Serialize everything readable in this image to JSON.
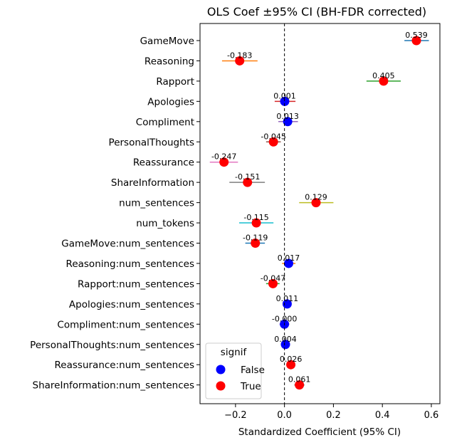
{
  "chart_data": {
    "type": "scatter",
    "title": "OLS Coef ±95% CI (BH-FDR corrected)",
    "xlabel": "Standardized Coefficient (95% CI)",
    "ylabel": "",
    "xlim": [
      -0.345,
      0.635
    ],
    "xticks": [
      -0.2,
      0.0,
      0.2,
      0.4,
      0.6
    ],
    "xtick_labels": [
      "−0.2",
      "0.0",
      "0.2",
      "0.4",
      "0.6"
    ],
    "reference_line": 0.0,
    "grid": false,
    "legend": {
      "title": "signif",
      "placement": "lower-left",
      "entries": [
        {
          "label": "False",
          "color": "#0000ff"
        },
        {
          "label": "True",
          "color": "#ff0000"
        }
      ]
    },
    "terms": [
      {
        "name": "GameMove",
        "coef": 0.539,
        "label": "0.539",
        "ci": [
          0.49,
          0.59
        ],
        "signif": true,
        "ci_color": "#1f77b4"
      },
      {
        "name": "Reasoning",
        "coef": -0.183,
        "label": "-0.183",
        "ci": [
          -0.255,
          -0.11
        ],
        "signif": true,
        "ci_color": "#ff7f0e"
      },
      {
        "name": "Rapport",
        "coef": 0.405,
        "label": "0.405",
        "ci": [
          0.335,
          0.475
        ],
        "signif": true,
        "ci_color": "#2ca02c"
      },
      {
        "name": "Apologies",
        "coef": 0.001,
        "label": "0.001",
        "ci": [
          -0.04,
          0.045
        ],
        "signif": false,
        "ci_color": "#d62728"
      },
      {
        "name": "Compliment",
        "coef": 0.013,
        "label": "0.013",
        "ci": [
          -0.025,
          0.055
        ],
        "signif": false,
        "ci_color": "#9467bd"
      },
      {
        "name": "PersonalThoughts",
        "coef": -0.045,
        "label": "-0.045",
        "ci": [
          -0.075,
          -0.015
        ],
        "signif": true,
        "ci_color": "#8c564b"
      },
      {
        "name": "Reassurance",
        "coef": -0.247,
        "label": "-0.247",
        "ci": [
          -0.305,
          -0.19
        ],
        "signif": true,
        "ci_color": "#e377c2"
      },
      {
        "name": "ShareInformation",
        "coef": -0.151,
        "label": "-0.151",
        "ci": [
          -0.225,
          -0.08
        ],
        "signif": true,
        "ci_color": "#7f7f7f"
      },
      {
        "name": "num_sentences",
        "coef": 0.129,
        "label": "0.129",
        "ci": [
          0.06,
          0.2
        ],
        "signif": true,
        "ci_color": "#bcbd22"
      },
      {
        "name": "num_tokens",
        "coef": -0.115,
        "label": "-0.115",
        "ci": [
          -0.185,
          -0.045
        ],
        "signif": true,
        "ci_color": "#17becf"
      },
      {
        "name": "GameMove:num_sentences",
        "coef": -0.119,
        "label": "-0.119",
        "ci": [
          -0.16,
          -0.08
        ],
        "signif": true,
        "ci_color": "#1f77b4"
      },
      {
        "name": "Reasoning:num_sentences",
        "coef": 0.017,
        "label": "0.017",
        "ci": [
          -0.01,
          0.045
        ],
        "signif": false,
        "ci_color": "#ff7f0e"
      },
      {
        "name": "Rapport:num_sentences",
        "coef": -0.047,
        "label": "-0.047",
        "ci": [
          -0.075,
          -0.02
        ],
        "signif": true,
        "ci_color": "#2ca02c"
      },
      {
        "name": "Apologies:num_sentences",
        "coef": 0.011,
        "label": "0.011",
        "ci": [
          -0.005,
          0.025
        ],
        "signif": false,
        "ci_color": "#d62728"
      },
      {
        "name": "Compliment:num_sentences",
        "coef": -0.0,
        "label": "-0.000",
        "ci": [
          -0.02,
          0.02
        ],
        "signif": false,
        "ci_color": "#9467bd"
      },
      {
        "name": "PersonalThoughts:num_sentences",
        "coef": 0.004,
        "label": "0.004",
        "ci": [
          -0.01,
          0.018
        ],
        "signif": false,
        "ci_color": "#8c564b"
      },
      {
        "name": "Reassurance:num_sentences",
        "coef": 0.026,
        "label": "0.026",
        "ci": [
          0.012,
          0.04
        ],
        "signif": true,
        "ci_color": "#e377c2"
      },
      {
        "name": "ShareInformation:num_sentences",
        "coef": 0.061,
        "label": "0.061",
        "ci": [
          0.04,
          0.082
        ],
        "signif": true,
        "ci_color": "#7f7f7f"
      }
    ]
  }
}
